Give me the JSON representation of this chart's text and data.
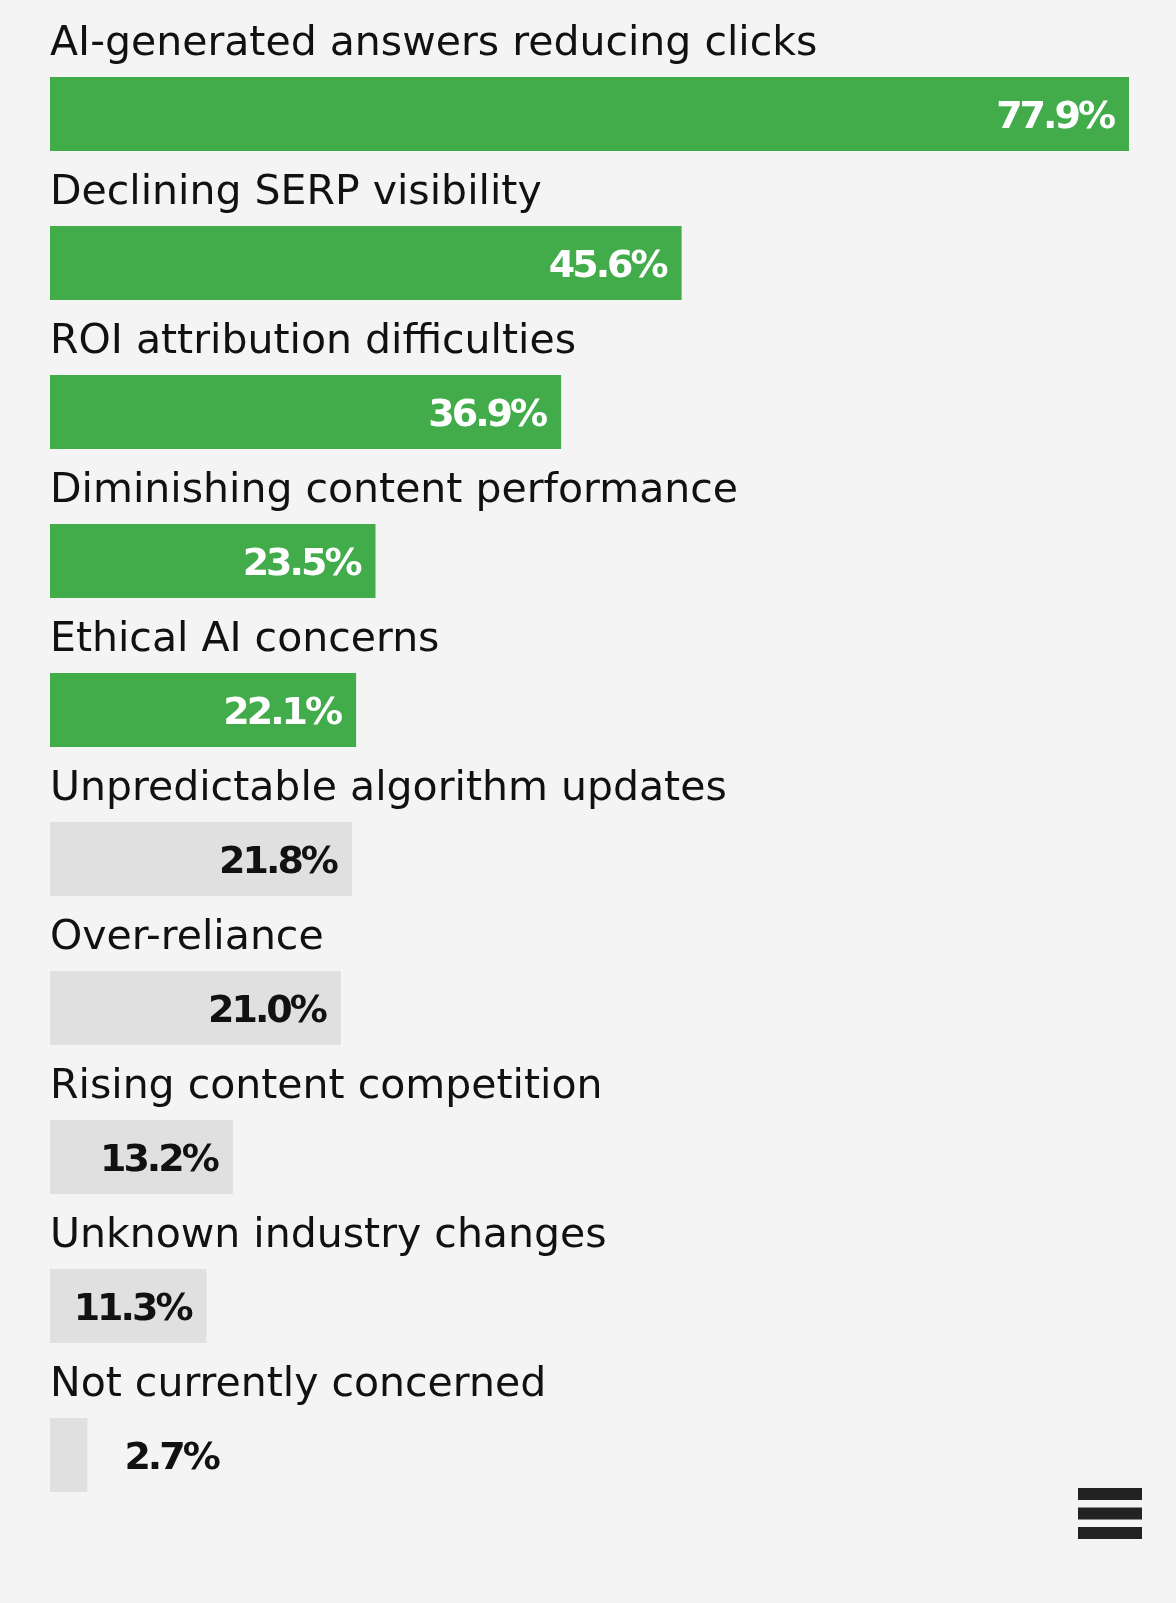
{
  "chart_data": {
    "type": "bar",
    "orientation": "horizontal",
    "categories": [
      "AI-generated answers reducing clicks",
      "Declining SERP visibility",
      "ROI attribution difficulties",
      "Diminishing content performance",
      "Ethical AI concerns",
      "Unpredictable algorithm updates",
      "Over-reliance",
      "Rising content competition",
      "Unknown industry changes",
      "Not currently concerned"
    ],
    "values": [
      77.9,
      45.6,
      36.9,
      23.5,
      22.1,
      21.8,
      21.0,
      13.2,
      11.3,
      2.7
    ],
    "value_labels": [
      "77.9%",
      "45.6%",
      "36.9%",
      "23.5%",
      "22.1%",
      "21.8%",
      "21.0%",
      "13.2%",
      "11.3%",
      "2.7%"
    ],
    "colors": [
      "#42ac4b",
      "#42ac4b",
      "#42ac4b",
      "#42ac4b",
      "#42ac4b",
      "#e0e0e0",
      "#e0e0e0",
      "#e0e0e0",
      "#e0e0e0",
      "#e0e0e0"
    ]
  }
}
